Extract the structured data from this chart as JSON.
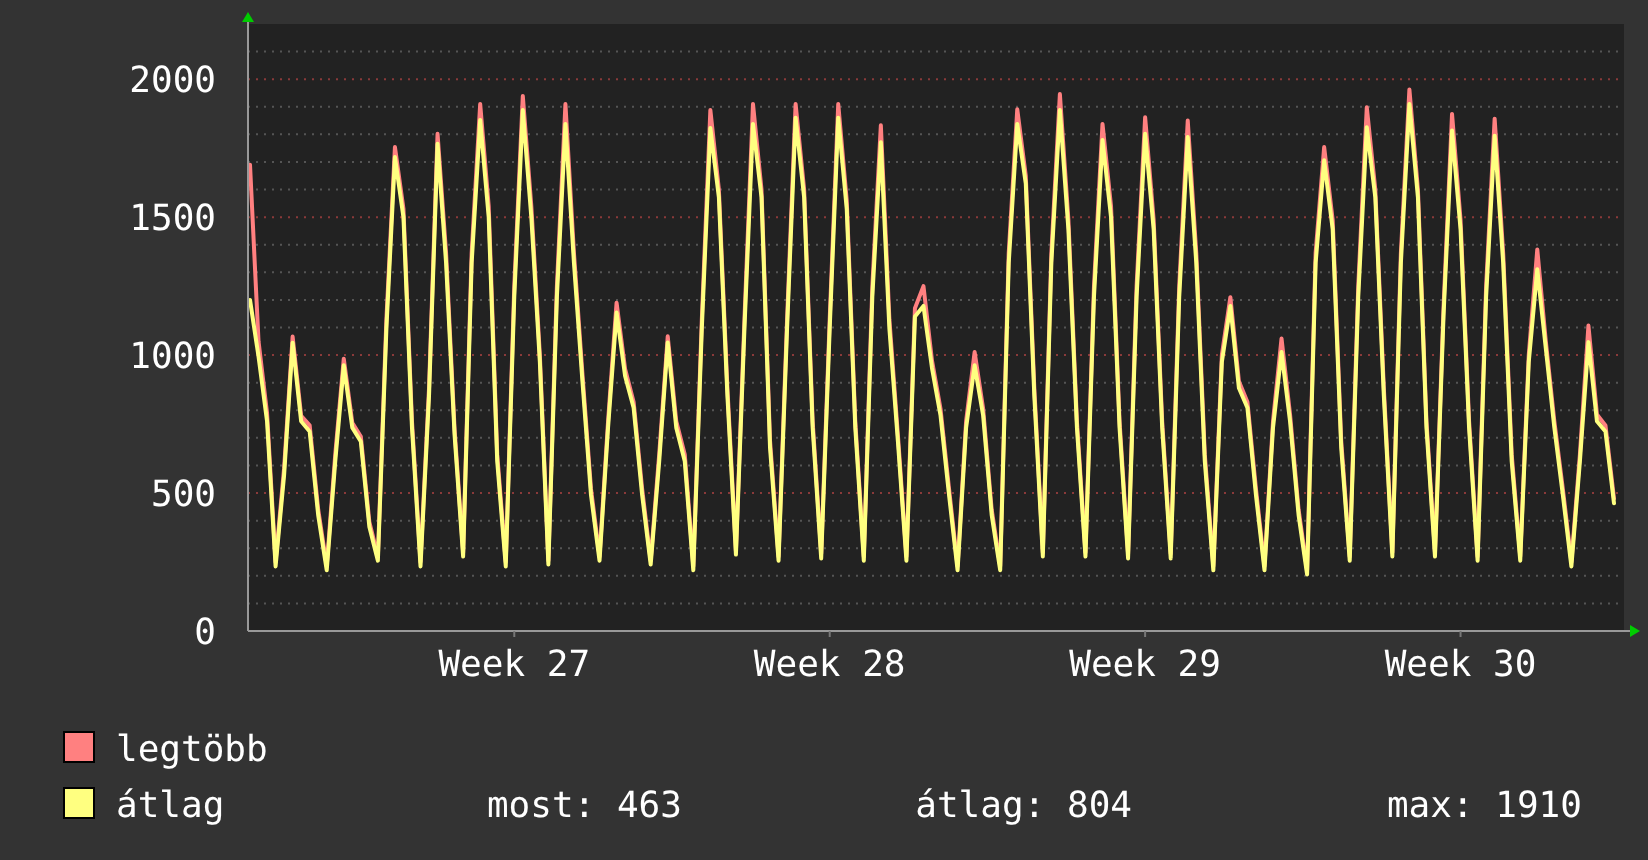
{
  "chart_data": {
    "type": "line",
    "legend": "bottom",
    "grid": "y",
    "marker": "none",
    "line_style": "solid",
    "categories": [
      null,
      null,
      null,
      null,
      null,
      null,
      null,
      null,
      null,
      null,
      null,
      null,
      null,
      null,
      null,
      null,
      null,
      null,
      null,
      null,
      null,
      null,
      null,
      null,
      null,
      null,
      null,
      null,
      null,
      null,
      null,
      "Week 27",
      null,
      null,
      null,
      null,
      null,
      null,
      null,
      null,
      null,
      null,
      null,
      null,
      null,
      null,
      null,
      null,
      null,
      null,
      null,
      null,
      null,
      null,
      null,
      null,
      null,
      null,
      null,
      null,
      null,
      null,
      null,
      null,
      null,
      null,
      null,
      null,
      "Week 28",
      null,
      null,
      null,
      null,
      null,
      null,
      null,
      null,
      null,
      null,
      null,
      null,
      null,
      null,
      null,
      null,
      null,
      null,
      null,
      null,
      null,
      null,
      null,
      null,
      null,
      null,
      null,
      null,
      null,
      null,
      null,
      null,
      null,
      null,
      null,
      null,
      "Week 29",
      null,
      null,
      null,
      null,
      null,
      null,
      null,
      null,
      null,
      null,
      null,
      null,
      null,
      null,
      null,
      null,
      null,
      null,
      null,
      null,
      null,
      null,
      null,
      null,
      null,
      null,
      null,
      null,
      null,
      null,
      null,
      null,
      null,
      null,
      null,
      null,
      "Week 30",
      null,
      null,
      null,
      null,
      null,
      null,
      null,
      null,
      null,
      null,
      null,
      null,
      null,
      null,
      null,
      null,
      null,
      null
    ],
    "series": [
      {
        "name": "legtöbb",
        "color": "#ff8080",
        "values": [
          1690,
          1050,
          790,
          250,
          590,
          1067,
          780,
          745,
          440,
          235,
          640,
          987,
          755,
          705,
          395,
          270,
          1130,
          1754,
          1530,
          760,
          250,
          880,
          1802,
          1370,
          730,
          285,
          1370,
          1910,
          1540,
          640,
          250,
          1250,
          1939,
          1540,
          1000,
          255,
          1250,
          1910,
          1370,
          930,
          515,
          270,
          760,
          1190,
          950,
          830,
          515,
          255,
          640,
          1068,
          760,
          640,
          235,
          1130,
          1888,
          1600,
          880,
          290,
          1130,
          1910,
          1600,
          690,
          270,
          1130,
          1910,
          1600,
          760,
          280,
          1130,
          1910,
          1560,
          760,
          270,
          1250,
          1833,
          1130,
          710,
          270,
          1170,
          1250,
          980,
          805,
          515,
          235,
          760,
          1011,
          805,
          440,
          235,
          1370,
          1891,
          1650,
          880,
          285,
          1370,
          1946,
          1490,
          760,
          285,
          1250,
          1838,
          1540,
          760,
          280,
          1250,
          1862,
          1490,
          760,
          280,
          1250,
          1850,
          1370,
          640,
          235,
          1000,
          1210,
          905,
          830,
          515,
          235,
          760,
          1060,
          785,
          440,
          220,
          1370,
          1754,
          1490,
          690,
          270,
          1250,
          1898,
          1600,
          880,
          285,
          1370,
          1963,
          1600,
          760,
          285,
          1170,
          1874,
          1490,
          760,
          270,
          1250,
          1857,
          1370,
          640,
          270,
          1000,
          1383,
          1050,
          760,
          515,
          250,
          640,
          1107,
          785,
          745,
          480
        ]
      },
      {
        "name": "átlag",
        "color": "#ffff80",
        "values": [
          1200,
          995,
          760,
          234,
          565,
          1045,
          760,
          723,
          420,
          220,
          615,
          963,
          737,
          687,
          378,
          255,
          1097,
          1718,
          1500,
          737,
          234,
          853,
          1766,
          1334,
          709,
          270,
          1334,
          1852,
          1500,
          615,
          234,
          1212,
          1888,
          1500,
          975,
          241,
          1212,
          1838,
          1334,
          903,
          493,
          255,
          737,
          1154,
          924,
          809,
          493,
          241,
          615,
          1046,
          737,
          615,
          220,
          1097,
          1823,
          1572,
          853,
          277,
          1097,
          1838,
          1572,
          665,
          255,
          1097,
          1860,
          1572,
          737,
          263,
          1097,
          1860,
          1529,
          737,
          255,
          1212,
          1771,
          1097,
          687,
          255,
          1140,
          1178,
          953,
          781,
          493,
          220,
          737,
          963,
          781,
          421,
          220,
          1334,
          1838,
          1622,
          853,
          270,
          1334,
          1888,
          1456,
          737,
          270,
          1212,
          1780,
          1500,
          737,
          263,
          1212,
          1802,
          1456,
          737,
          263,
          1212,
          1790,
          1334,
          615,
          220,
          975,
          1178,
          881,
          809,
          493,
          220,
          737,
          1011,
          760,
          421,
          205,
          1334,
          1706,
          1456,
          665,
          255,
          1212,
          1826,
          1572,
          853,
          270,
          1334,
          1910,
          1572,
          737,
          270,
          1140,
          1814,
          1456,
          737,
          255,
          1212,
          1795,
          1334,
          615,
          255,
          975,
          1311,
          1025,
          737,
          493,
          234,
          615,
          1047,
          760,
          723,
          463
        ]
      }
    ],
    "ylim": [
      0,
      2200
    ],
    "yticks": [
      0,
      {
        "value": 100,
        "label": null
      },
      {
        "value": 200,
        "label": null
      },
      {
        "value": 300,
        "label": null
      },
      {
        "value": 400,
        "label": null
      },
      500,
      {
        "value": 600,
        "label": null
      },
      {
        "value": 700,
        "label": null
      },
      {
        "value": 800,
        "label": null
      },
      {
        "value": 900,
        "label": null
      },
      1000,
      {
        "value": 1100,
        "label": null
      },
      {
        "value": 1200,
        "label": null
      },
      {
        "value": 1300,
        "label": null
      },
      {
        "value": 1400,
        "label": null
      },
      1500,
      {
        "value": 1600,
        "label": null
      },
      {
        "value": 1700,
        "label": null
      },
      {
        "value": 1800,
        "label": null
      },
      {
        "value": 1900,
        "label": null
      },
      2000,
      {
        "value": 2100,
        "label": null
      }
    ],
    "annotations": [
      "most: 463",
      "átlag: 804",
      "max: 1910"
    ]
  }
}
